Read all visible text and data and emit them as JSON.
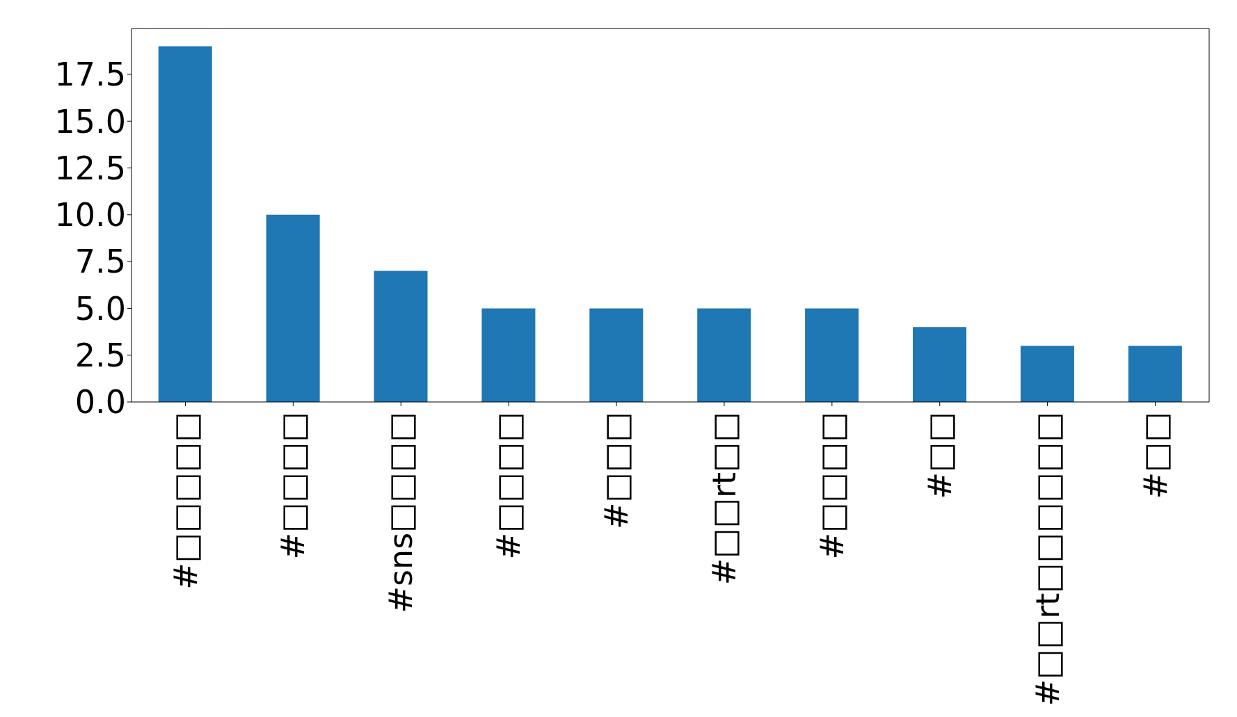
{
  "chart_data": {
    "type": "bar",
    "categories": [
      "#□□□□□",
      "#□□□□",
      "#sns□□□□",
      "#□□□□",
      "#□□□",
      "#□□rt□□",
      "#□□□□",
      "#□□",
      "#□□rt□□□□□□",
      "#□□"
    ],
    "values": [
      19,
      10,
      7,
      5,
      5,
      5,
      5,
      4,
      3,
      3
    ],
    "color": "#1f77b4",
    "ylim": [
      0,
      19.95
    ],
    "yticks": [
      {
        "value": 0,
        "label": "0.0"
      },
      {
        "value": 2.5,
        "label": "2.5"
      },
      {
        "value": 5,
        "label": "5.0"
      },
      {
        "value": 7.5,
        "label": "7.5"
      },
      {
        "value": 10,
        "label": "10.0"
      },
      {
        "value": 12.5,
        "label": "12.5"
      },
      {
        "value": 15,
        "label": "15.0"
      },
      {
        "value": 17.5,
        "label": "17.5"
      }
    ],
    "grid": false,
    "legend": false
  }
}
